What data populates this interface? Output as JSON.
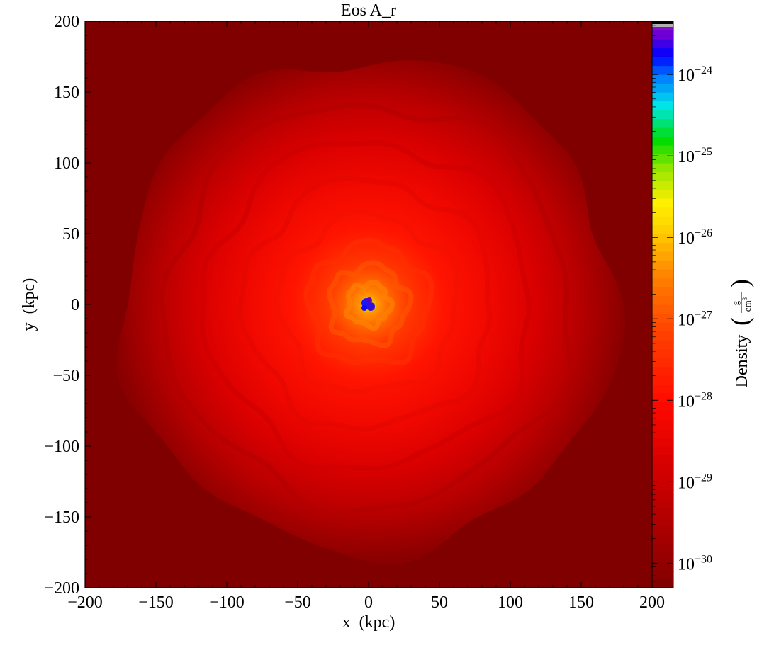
{
  "chart_data": {
    "type": "heatmap",
    "title": "Eos A_r",
    "xlabel": "x  (kpc)",
    "ylabel": "y  (kpc)",
    "xlim": [
      -200,
      200
    ],
    "ylim": [
      -200,
      200
    ],
    "xticks": [
      -200,
      -150,
      -100,
      -50,
      0,
      50,
      100,
      150,
      200
    ],
    "yticks": [
      -200,
      -150,
      -100,
      -50,
      0,
      50,
      100,
      150,
      200
    ],
    "xtick_labels": [
      "−200",
      "−150",
      "−100",
      "−50",
      "0",
      "50",
      "100",
      "150",
      "200"
    ],
    "ytick_labels": [
      "−200",
      "−150",
      "−100",
      "−50",
      "0",
      "50",
      "100",
      "150",
      "200"
    ],
    "grid": false,
    "colormap": "nipy_spectral-like (dark red to violet)",
    "colorbar": {
      "label": "Density",
      "unit_numerator": "g",
      "unit_denominator": "cm",
      "unit_denominator_exponent": "3",
      "scale": "log",
      "range": [
        5e-31,
        4.5e-24
      ],
      "tick_base": "10",
      "tick_exponents": [
        "−24",
        "−25",
        "−26",
        "−27",
        "−28",
        "−29",
        "−30"
      ],
      "tick_values": [
        1e-24,
        1e-25,
        1e-26,
        1e-27,
        1e-28,
        1e-29,
        1e-30
      ]
    },
    "density_profile": {
      "description": "radially decreasing gas density centred on the origin",
      "center_kpc": [
        0,
        0
      ],
      "central_density": 2e-24,
      "background_density": 6e-31,
      "edge_radius_kpc": 175
    },
    "colors": {
      "background": "#800000",
      "mid_red": "#ff1000",
      "core": "#1010ff"
    }
  }
}
